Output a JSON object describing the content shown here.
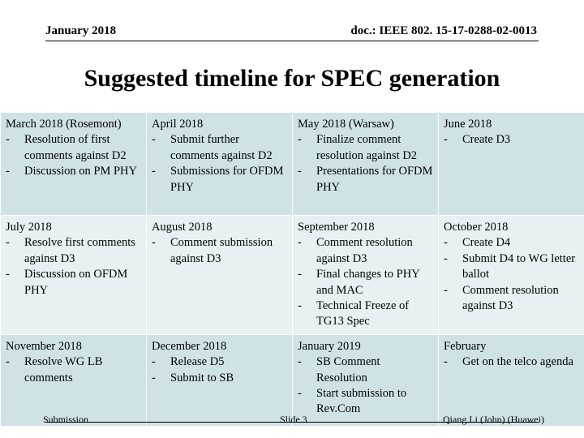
{
  "header": {
    "date": "January 2018",
    "doc": "doc.: IEEE 802. 15-17-0288-02-0013"
  },
  "title": "Suggested timeline for SPEC generation",
  "timeline": [
    [
      {
        "head": "March 2018 (Rosemont)",
        "items": [
          "Resolution of first comments against D2",
          "Discussion on PM PHY"
        ]
      },
      {
        "head": "April 2018",
        "items": [
          "Submit further comments against D2",
          "Submissions for OFDM PHY"
        ]
      },
      {
        "head": "May 2018 (Warsaw)",
        "items": [
          "Finalize comment resolution against D2",
          "Presentations for OFDM PHY"
        ]
      },
      {
        "head": "June 2018",
        "items": [
          "Create D3"
        ]
      }
    ],
    [
      {
        "head": "July 2018",
        "items": [
          "Resolve first comments against D3",
          "Discussion on OFDM PHY"
        ]
      },
      {
        "head": "August 2018",
        "items": [
          "Comment submission against D3"
        ]
      },
      {
        "head": "September 2018",
        "items": [
          "Comment resolution against D3",
          "Final changes to PHY and MAC",
          "Technical Freeze of TG13 Spec"
        ]
      },
      {
        "head": "October 2018",
        "items": [
          "Create D4",
          "Submit D4 to WG letter ballot",
          "Comment resolution against D3"
        ]
      }
    ],
    [
      {
        "head": "November 2018",
        "items": [
          "Resolve WG LB comments"
        ]
      },
      {
        "head": "December 2018",
        "items": [
          "Release D5",
          "Submit to SB"
        ]
      },
      {
        "head": "January 2019",
        "items": [
          "SB Comment Resolution",
          "Start submission to Rev.Com"
        ]
      },
      {
        "head": "February",
        "items": [
          "Get on the telco agenda"
        ]
      }
    ]
  ],
  "footer": {
    "left": "Submission",
    "center": "Slide 3",
    "right": "Qiang Li (John) (Huawei)"
  }
}
